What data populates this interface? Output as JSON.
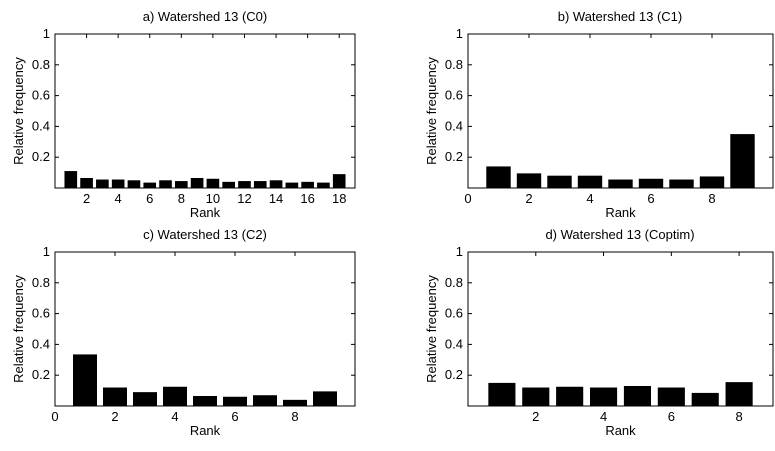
{
  "colors": {
    "bar": "#000000",
    "axis": "#000000",
    "background": "#ffffff"
  },
  "chart_data": [
    {
      "type": "bar",
      "title": "a) Watershed 13 (C0)",
      "xlabel": "Rank",
      "ylabel": "Relative frequency",
      "categories": [
        "1",
        "2",
        "3",
        "4",
        "5",
        "6",
        "7",
        "8",
        "9",
        "10",
        "11",
        "12",
        "13",
        "14",
        "15",
        "16",
        "17",
        "18"
      ],
      "values": [
        0.11,
        0.065,
        0.055,
        0.055,
        0.05,
        0.035,
        0.05,
        0.045,
        0.065,
        0.06,
        0.04,
        0.045,
        0.045,
        0.05,
        0.035,
        0.04,
        0.035,
        0.09
      ],
      "xlim": [
        0,
        19
      ],
      "ylim": [
        0,
        1
      ],
      "xticks": [
        "2",
        "4",
        "6",
        "8",
        "10",
        "12",
        "14",
        "16",
        "18"
      ],
      "xtick_values": [
        2,
        4,
        6,
        8,
        10,
        12,
        14,
        16,
        18
      ],
      "yticks": [
        "0.2",
        "0.4",
        "0.6",
        "0.8",
        "1"
      ],
      "ytick_values": [
        0.2,
        0.4,
        0.6,
        0.8,
        1
      ],
      "grid": false
    },
    {
      "type": "bar",
      "title": "b) Watershed 13 (C1)",
      "xlabel": "Rank",
      "ylabel": "Relative frequency",
      "categories": [
        "1",
        "2",
        "3",
        "4",
        "5",
        "6",
        "7",
        "8",
        "9"
      ],
      "values": [
        0.14,
        0.095,
        0.08,
        0.08,
        0.055,
        0.06,
        0.055,
        0.075,
        0.35
      ],
      "xlim": [
        0,
        10
      ],
      "ylim": [
        0,
        1
      ],
      "xticks": [
        "0",
        "2",
        "4",
        "6",
        "8"
      ],
      "xtick_values": [
        0,
        2,
        4,
        6,
        8
      ],
      "yticks": [
        "0.2",
        "0.4",
        "0.6",
        "0.8",
        "1"
      ],
      "ytick_values": [
        0.2,
        0.4,
        0.6,
        0.8,
        1
      ],
      "grid": false
    },
    {
      "type": "bar",
      "title": "c) Watershed 13 (C2)",
      "xlabel": "Rank",
      "ylabel": "Relative frequency",
      "categories": [
        "1",
        "2",
        "3",
        "4",
        "5",
        "6",
        "7",
        "8",
        "9"
      ],
      "values": [
        0.335,
        0.12,
        0.09,
        0.125,
        0.065,
        0.06,
        0.07,
        0.04,
        0.095
      ],
      "xlim": [
        0,
        10
      ],
      "ylim": [
        0,
        1
      ],
      "xticks": [
        "0",
        "2",
        "4",
        "6",
        "8"
      ],
      "xtick_values": [
        0,
        2,
        4,
        6,
        8
      ],
      "yticks": [
        "0.2",
        "0.4",
        "0.6",
        "0.8",
        "1"
      ],
      "ytick_values": [
        0.2,
        0.4,
        0.6,
        0.8,
        1
      ],
      "grid": false
    },
    {
      "type": "bar",
      "title": "d) Watershed 13 (Coptim)",
      "xlabel": "Rank",
      "ylabel": "Relative frequency",
      "categories": [
        "1",
        "2",
        "3",
        "4",
        "5",
        "6",
        "7",
        "8"
      ],
      "values": [
        0.15,
        0.12,
        0.125,
        0.12,
        0.13,
        0.12,
        0.085,
        0.155
      ],
      "xlim": [
        0,
        9
      ],
      "ylim": [
        0,
        1
      ],
      "xticks": [
        "2",
        "4",
        "6",
        "8"
      ],
      "xtick_values": [
        2,
        4,
        6,
        8
      ],
      "yticks": [
        "0.2",
        "0.4",
        "0.6",
        "0.8",
        "1"
      ],
      "ytick_values": [
        0.2,
        0.4,
        0.6,
        0.8,
        1
      ],
      "grid": false
    }
  ]
}
